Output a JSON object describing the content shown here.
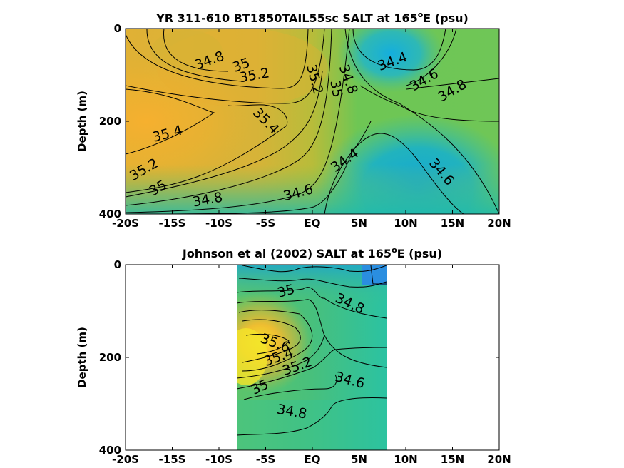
{
  "chart_data": [
    {
      "type": "heatmap",
      "title_main": "YR 311-610 BT1850TAIL55sc SALT at 165",
      "title_sup": "o",
      "title_tail": "E (psu)",
      "ylabel": "Depth (m)",
      "x_ticks": [
        "-20S",
        "-15S",
        "-10S",
        "-5S",
        "EQ",
        "5N",
        "10N",
        "15N",
        "20N"
      ],
      "x_tick_values": [
        -20,
        -15,
        -10,
        -5,
        0,
        5,
        10,
        15,
        20
      ],
      "y_ticks": [
        "0",
        "200",
        "400"
      ],
      "y_tick_values": [
        0,
        200,
        400
      ],
      "xlim": [
        -20,
        20
      ],
      "ylim": [
        400,
        0
      ],
      "contour_labels": [
        {
          "text": "34.8",
          "x": -11,
          "y": 70
        },
        {
          "text": "35",
          "x": -7.6,
          "y": 80
        },
        {
          "text": "35.2",
          "x": -6.2,
          "y": 102
        },
        {
          "text": "35.2",
          "x": 0.2,
          "y": 110
        },
        {
          "text": "34.8",
          "x": 3.8,
          "y": 110
        },
        {
          "text": "35",
          "x": 2.5,
          "y": 130
        },
        {
          "text": "34.4",
          "x": 8.6,
          "y": 72
        },
        {
          "text": "34.6",
          "x": 12,
          "y": 112
        },
        {
          "text": "34.8",
          "x": 15,
          "y": 135
        },
        {
          "text": "35.4",
          "x": -5,
          "y": 200
        },
        {
          "text": "35.4",
          "x": -15.5,
          "y": 228
        },
        {
          "text": "35.2",
          "x": -18,
          "y": 305
        },
        {
          "text": "35",
          "x": -16.5,
          "y": 345
        },
        {
          "text": "34.8",
          "x": -11.2,
          "y": 370
        },
        {
          "text": "34.6",
          "x": -1.5,
          "y": 355
        },
        {
          "text": "34.4",
          "x": 3.5,
          "y": 285
        },
        {
          "text": "34.6",
          "x": 13.8,
          "y": 310
        }
      ]
    },
    {
      "type": "heatmap",
      "title_main": "Johnson et al (2002) SALT at 165",
      "title_sup": "o",
      "title_tail": "E (psu)",
      "ylabel": "Depth (m)",
      "x_ticks": [
        "-20S",
        "-15S",
        "-10S",
        "-5S",
        "EQ",
        "5N",
        "10N",
        "15N",
        "20N"
      ],
      "x_tick_values": [
        -20,
        -15,
        -10,
        -5,
        0,
        5,
        10,
        15,
        20
      ],
      "y_ticks": [
        "0",
        "200",
        "400"
      ],
      "y_tick_values": [
        0,
        200,
        400
      ],
      "xlim": [
        -20,
        20
      ],
      "ylim": [
        400,
        0
      ],
      "data_xrange": [
        -8,
        8
      ],
      "contour_labels": [
        {
          "text": "35",
          "x": -2.8,
          "y": 58
        },
        {
          "text": "34.8",
          "x": 4,
          "y": 85
        },
        {
          "text": "35.6",
          "x": -4,
          "y": 170
        },
        {
          "text": "35.4",
          "x": -3.6,
          "y": 200
        },
        {
          "text": "35.2",
          "x": -1.6,
          "y": 220
        },
        {
          "text": "35",
          "x": -5.6,
          "y": 265
        },
        {
          "text": "34.6",
          "x": 4,
          "y": 250
        },
        {
          "text": "34.8",
          "x": -2.2,
          "y": 318
        }
      ]
    }
  ]
}
